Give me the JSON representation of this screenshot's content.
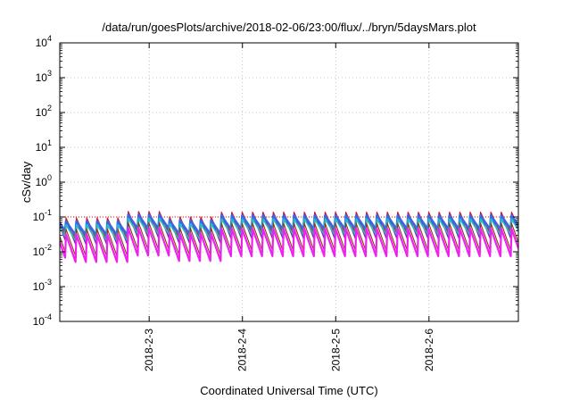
{
  "chart_data": {
    "type": "line",
    "title": "/data/run/goesPlots/archive/2018-02-06/23:00/flux/../bryn/5daysMars.plot",
    "xlabel": "Coordinated Universal Time (UTC)",
    "ylabel": "cSv/day",
    "yscale": "log",
    "ylim": [
      0.0001,
      10000
    ],
    "xlim": [
      "2018-02-02T01:00",
      "2018-02-06T23:00"
    ],
    "x_ticks": [
      "2018-2-3",
      "2018-2-4",
      "2018-2-5",
      "2018-2-6"
    ],
    "y_ticks": [
      {
        "base": "10",
        "exp": "-4",
        "value": 0.0001
      },
      {
        "base": "10",
        "exp": "-3",
        "value": 0.001
      },
      {
        "base": "10",
        "exp": "-2",
        "value": 0.01
      },
      {
        "base": "10",
        "exp": "-1",
        "value": 0.1
      },
      {
        "base": "10",
        "exp": "0",
        "value": 1
      },
      {
        "base": "10",
        "exp": "1",
        "value": 10
      },
      {
        "base": "10",
        "exp": "2",
        "value": 100
      },
      {
        "base": "10",
        "exp": "3",
        "value": 1000
      },
      {
        "base": "10",
        "exp": "4",
        "value": 10000
      }
    ],
    "reference_line": {
      "value": 0.1,
      "color": "#e8000b",
      "style": "dotted"
    },
    "grid": true,
    "sawtooth": {
      "pulses_per_day": 9,
      "peak_series": [
        {
          "color": "#dd1c1c",
          "width": 1.3,
          "peak": 0.125,
          "trough": 0.03
        },
        {
          "color": "#7a1fa8",
          "width": 1.3,
          "peak": 0.11,
          "trough": 0.022
        },
        {
          "color": "#3d66e0",
          "width": 2.6,
          "peak": 0.1,
          "trough": 0.04
        },
        {
          "color": "#1fbfbf",
          "width": 1.6,
          "peak": 0.08,
          "trough": 0.028
        },
        {
          "color": "#8a3a1a",
          "width": 1.1,
          "peak": 0.06,
          "trough": 0.01
        },
        {
          "color": "#ee22ee",
          "width": 2.2,
          "peak": 0.042,
          "trough": 0.0068
        }
      ],
      "modulation": [
        {
          "start": "2018-02-02T01:00",
          "end": "2018-02-02T16:00",
          "factor": 0.75
        },
        {
          "start": "2018-02-02T16:00",
          "end": "2018-02-03T03:00",
          "factor": 1.15
        },
        {
          "start": "2018-02-03T03:00",
          "end": "2018-02-03T16:00",
          "factor": 0.8
        },
        {
          "start": "2018-02-03T16:00",
          "end": "2018-02-06T23:00",
          "factor": 1.1
        }
      ]
    }
  }
}
